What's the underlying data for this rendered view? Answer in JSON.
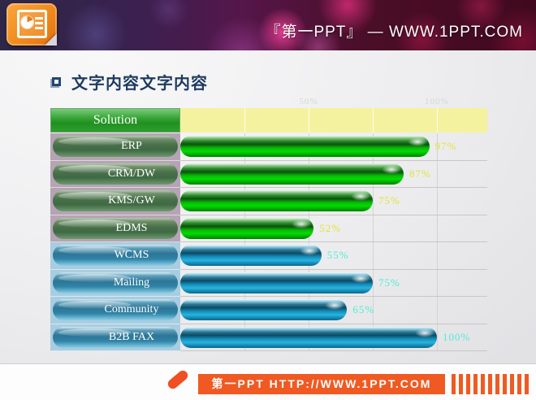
{
  "banner": {
    "brand_text": "『第一PPT』 —  WWW.1PPT.COM"
  },
  "slide": {
    "title": "文字内容文字内容"
  },
  "chart_data": {
    "type": "bar",
    "orientation": "horizontal",
    "header_label": "Solution",
    "categories": [
      "ERP",
      "CRM/DW",
      "KMS/GW",
      "EDMS",
      "WCMS",
      "Mailing",
      "Community",
      "B2B FAX"
    ],
    "values": [
      97,
      87,
      75,
      52,
      55,
      75,
      65,
      100
    ],
    "value_labels": [
      "97%",
      "87%",
      "75%",
      "52%",
      "55%",
      "75%",
      "65%",
      "100%"
    ],
    "row_themes": [
      "green",
      "green",
      "green",
      "green",
      "blue",
      "blue",
      "blue",
      "blue"
    ],
    "xlim": [
      0,
      100
    ],
    "x_tick_labels": [
      "50%",
      "100%"
    ],
    "gridline_percents": [
      25,
      50,
      75,
      100
    ],
    "grid": true,
    "legend": false
  },
  "colors": {
    "bar_green": "#00cc00",
    "bar_blue": "#1b96c3",
    "label_bg_green_section": "#b5a4b4",
    "label_bg_blue_section": "#a8cde0",
    "value_label_green": "#e2e23a",
    "value_label_blue": "#4fecd2",
    "header_green": "#2f9e2f",
    "band_yellow": "#f4f29f",
    "title_navy": "#1e3a5f",
    "footer_orange": "#f05a22"
  },
  "footer": {
    "text": "第一PPT HTTP://WWW.1PPT.COM"
  }
}
